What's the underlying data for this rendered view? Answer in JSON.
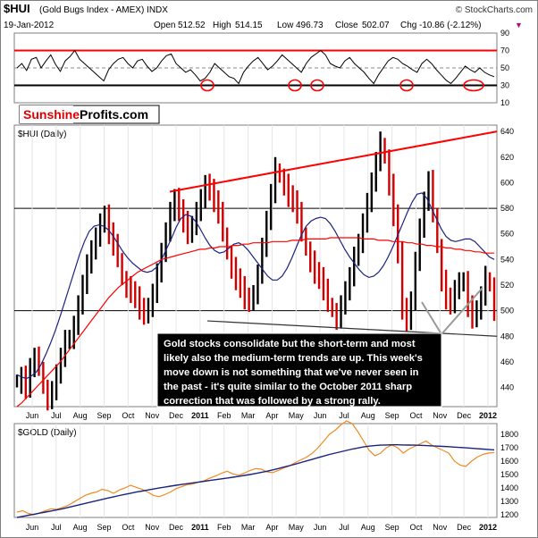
{
  "header": {
    "symbol": "$HUI",
    "name": "(Gold Bugs Index - AMEX) INDX",
    "source": "© StockCharts.com",
    "date": "19-Jan-2012",
    "quote": {
      "open_label": "Open",
      "open": "512.52",
      "high_label": "High",
      "high": "514.15",
      "low_label": "Low",
      "low": "496.73",
      "close_label": "Close",
      "close": "502.07",
      "chg_label": "Chg",
      "chg": "-10.86 (-2.12%)"
    },
    "arrow": "▼"
  },
  "watermark": {
    "part1": "Sunshine",
    "part2": "Profits.com"
  },
  "colors": {
    "frame": "#7f7f7f",
    "red": "#ff0000",
    "navy": "#1a237e",
    "orange": "#f08a24",
    "price_up": "#000000",
    "price_down": "#d10000",
    "annotation_bg": "#000000",
    "annotation_text": "#ffffff"
  },
  "annotation": {
    "lines": [
      "Gold stocks consolidate but the short-term and most",
      "likely also the medium-term trends are up. This week's",
      "move down is not something that we've never seen in",
      "the past - it's quite similar to the October 2011 sharp",
      "correction that was followed by a strong rally."
    ]
  },
  "chart_data": [
    {
      "type": "line",
      "panel": "indicator",
      "ylim": [
        10,
        90
      ],
      "y_ticks": [
        "90",
        "70",
        "50",
        "30",
        "10"
      ],
      "reference_lines": [
        70,
        30
      ],
      "circled_lows": [
        "Dec 2010",
        "May 2011",
        "Jun 2011",
        "Sep 2011",
        "Dec 2011"
      ],
      "series": [
        {
          "values": [
            50,
            55,
            47,
            60,
            62,
            50,
            58,
            65,
            54,
            46,
            58,
            63,
            70,
            60,
            55,
            50,
            45,
            40,
            35,
            48,
            55,
            60,
            62,
            55,
            50,
            58,
            60,
            52,
            46,
            50,
            58,
            64,
            66,
            55,
            50,
            45,
            48,
            42,
            35,
            38,
            45,
            55,
            50,
            45,
            40,
            38,
            32,
            45,
            52,
            58,
            62,
            55,
            48,
            52,
            58,
            65,
            60,
            55,
            50,
            45,
            55,
            62,
            66,
            70,
            65,
            55,
            52,
            50,
            58,
            62,
            55,
            50,
            45,
            38,
            32,
            42,
            50,
            58,
            62,
            60,
            55,
            52,
            48,
            45,
            55,
            60,
            55,
            48,
            42,
            36,
            32,
            38,
            45,
            52,
            48,
            45,
            50,
            45,
            42,
            40
          ]
        }
      ]
    },
    {
      "type": "line",
      "title": "$HUI (Daily)",
      "x_ticks": [
        "Jun",
        "Jul",
        "Aug",
        "Sep",
        "Oct",
        "Nov",
        "Dec",
        "2011",
        "Feb",
        "Mar",
        "Apr",
        "May",
        "Jun",
        "Jul",
        "Aug",
        "Sep",
        "Oct",
        "Nov",
        "Dec",
        "2012"
      ],
      "y_ticks": [
        "640",
        "620",
        "600",
        "580",
        "560",
        "540",
        "520",
        "500",
        "480",
        "460",
        "440"
      ],
      "ylim": [
        425,
        645
      ],
      "horizontal_lines": [
        580,
        500
      ],
      "series": [
        {
          "name": "price",
          "values": [
            445,
            450,
            440,
            455,
            462,
            455,
            440,
            432,
            438,
            450,
            462,
            475,
            480,
            490,
            505,
            520,
            535,
            545,
            560,
            570,
            575,
            560,
            550,
            540,
            525,
            520,
            515,
            510,
            500,
            495,
            505,
            515,
            530,
            545,
            560,
            575,
            590,
            580,
            570,
            560,
            565,
            575,
            590,
            600,
            595,
            585,
            575,
            560,
            545,
            535,
            525,
            518,
            508,
            505,
            515,
            530,
            550,
            570,
            590,
            610,
            605,
            600,
            590,
            585,
            575,
            560,
            548,
            540,
            530,
            525,
            515,
            505,
            500,
            495,
            505,
            515,
            525,
            540,
            555,
            570,
            585,
            600,
            615,
            630,
            620,
            600,
            575,
            545,
            500,
            490,
            510,
            540,
            565,
            585,
            600,
            575,
            550,
            525,
            510,
            505,
            515,
            520,
            525,
            505,
            495,
            500,
            510,
            525,
            520,
            502
          ]
        },
        {
          "name": "50-day MA",
          "values": [
            450,
            448,
            447,
            449,
            452,
            458,
            466,
            475,
            485,
            496,
            508,
            520,
            532,
            544,
            554,
            562,
            566,
            567,
            566,
            563,
            558,
            552,
            546,
            541,
            537,
            534,
            531,
            530,
            531,
            534,
            540,
            548,
            556,
            565,
            572,
            575,
            574,
            570,
            564,
            557,
            551,
            547,
            545,
            546,
            549,
            552,
            553,
            551,
            547,
            542,
            537,
            532,
            527,
            524,
            524,
            527,
            533,
            541,
            550,
            559,
            566,
            570,
            572,
            573,
            572,
            568,
            562,
            555,
            548,
            542,
            537,
            532,
            528,
            526,
            527,
            530,
            535,
            542,
            550,
            559,
            568,
            577,
            585,
            591,
            592,
            588,
            580,
            572,
            564,
            558,
            555,
            554,
            555,
            556,
            556,
            554,
            550,
            546,
            542,
            540
          ]
        },
        {
          "name": "200-day MA",
          "values": [
            425,
            428,
            432,
            436,
            440,
            444,
            448,
            452,
            456,
            460,
            465,
            470,
            475,
            480,
            485,
            490,
            495,
            500,
            505,
            510,
            514,
            518,
            521,
            524,
            527,
            530,
            532,
            534,
            536,
            538,
            540,
            541,
            542,
            543,
            544,
            545,
            546,
            547,
            548,
            548,
            549,
            549,
            550,
            550,
            550,
            551,
            551,
            552,
            552,
            553,
            553,
            553,
            553,
            554,
            554,
            554,
            554,
            555,
            555,
            555,
            556,
            556,
            556,
            556,
            556,
            557,
            557,
            557,
            557,
            557,
            557,
            557,
            556,
            556,
            556,
            555,
            555,
            555,
            554,
            554,
            554,
            553,
            553,
            552,
            552,
            551,
            551,
            550,
            550,
            549,
            549,
            548,
            548,
            547,
            547,
            546,
            546,
            545,
            545,
            545
          ]
        },
        {
          "name": "resistance",
          "values": [
            593,
            640
          ]
        },
        {
          "name": "support",
          "values": [
            492,
            480
          ]
        }
      ]
    },
    {
      "type": "line",
      "title": "$GOLD (Daily)",
      "x_ticks": [
        "Jun",
        "Jul",
        "Aug",
        "Sep",
        "Oct",
        "Nov",
        "Dec",
        "2011",
        "Feb",
        "Mar",
        "Apr",
        "May",
        "Jun",
        "Jul",
        "Aug",
        "Sep",
        "Oct",
        "Nov",
        "Dec",
        "2012"
      ],
      "y_ticks": [
        "1800",
        "1700",
        "1600",
        "1500",
        "1400",
        "1300",
        "1200"
      ],
      "ylim": [
        1180,
        1880
      ],
      "series": [
        {
          "name": "gold",
          "values": [
            1220,
            1230,
            1210,
            1200,
            1215,
            1230,
            1245,
            1240,
            1255,
            1270,
            1295,
            1320,
            1345,
            1360,
            1370,
            1390,
            1380,
            1360,
            1385,
            1400,
            1420,
            1405,
            1390,
            1370,
            1345,
            1335,
            1350,
            1370,
            1395,
            1410,
            1425,
            1430,
            1445,
            1455,
            1475,
            1490,
            1510,
            1525,
            1505,
            1495,
            1510,
            1530,
            1545,
            1540,
            1520,
            1515,
            1530,
            1550,
            1565,
            1590,
            1610,
            1630,
            1660,
            1700,
            1750,
            1800,
            1830,
            1870,
            1900,
            1880,
            1820,
            1750,
            1680,
            1640,
            1660,
            1700,
            1720,
            1700,
            1660,
            1690,
            1710,
            1730,
            1750,
            1720,
            1700,
            1680,
            1660,
            1600,
            1570,
            1560,
            1600,
            1630,
            1650,
            1660,
            1665
          ]
        },
        {
          "name": "200-day MA",
          "values": [
            1180,
            1188,
            1196,
            1204,
            1212,
            1220,
            1228,
            1236,
            1245,
            1255,
            1265,
            1275,
            1285,
            1295,
            1305,
            1315,
            1325,
            1334,
            1343,
            1352,
            1361,
            1369,
            1377,
            1385,
            1392,
            1399,
            1406,
            1413,
            1420,
            1426,
            1432,
            1438,
            1444,
            1450,
            1456,
            1462,
            1468,
            1474,
            1480,
            1486,
            1493,
            1500,
            1508,
            1516,
            1525,
            1535,
            1545,
            1556,
            1567,
            1578,
            1590,
            1602,
            1614,
            1626,
            1638,
            1650,
            1660,
            1670,
            1680,
            1690,
            1698,
            1706,
            1712,
            1716,
            1719,
            1721,
            1722,
            1722,
            1721,
            1720,
            1719,
            1718,
            1716,
            1714,
            1712,
            1710,
            1708,
            1705,
            1702,
            1699,
            1696,
            1693,
            1690,
            1687,
            1684
          ]
        }
      ]
    }
  ]
}
